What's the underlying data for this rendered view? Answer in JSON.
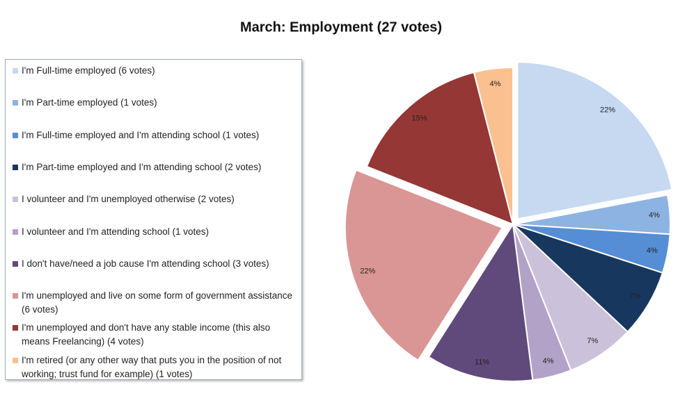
{
  "chart_data": {
    "type": "pie",
    "title": "March: Employment (27 votes)",
    "categories": [
      "I'm Full-time employed (6 votes)",
      "I'm Part-time employed (1 votes)",
      "I'm Full-time employed and I'm attending school (1 votes)",
      "I'm Part-time employed and I'm attending school (2 votes)",
      "I volunteer and I'm unemployed otherwise (2 votes)",
      "I volunteer and I'm attending school (1 votes)",
      "I don't have/need a job cause I'm attending school (3 votes)",
      "I'm unemployed and live on some form of government assistance (6 votes)",
      "I'm unemployed and don't have any stable income (this also means Freelancing) (4 votes)",
      "I'm retired (or any other way that puts you in the position of not working; trust fund for example) (1 votes)"
    ],
    "values": [
      22,
      4,
      4,
      7,
      7,
      4,
      11,
      22,
      15,
      4
    ],
    "value_labels": [
      "22%",
      "4%",
      "4%",
      "7%",
      "7%",
      "4%",
      "11%",
      "22%",
      "15%",
      "4%"
    ],
    "colors": [
      "#c6d9f1",
      "#8db3e2",
      "#558ed5",
      "#17375e",
      "#ccc1da",
      "#b3a2c7",
      "#604a7b",
      "#d99694",
      "#953735",
      "#fac090"
    ]
  }
}
